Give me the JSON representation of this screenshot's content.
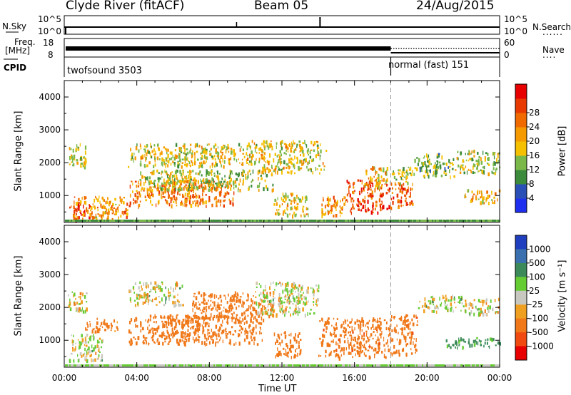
{
  "header": {
    "station": "Clyde River (fitACF)",
    "beam": "Beam 05",
    "date": "24/Aug/2015"
  },
  "sky_panel": {
    "left_label": "N.Sky",
    "right_label": "N.Search",
    "left_top": "10^5",
    "left_bottom": "10^0",
    "right_top": "10^5",
    "right_bottom": "10^0",
    "right_legend": "......"
  },
  "freq_panel": {
    "left_label_1": "Freq.",
    "left_label_2": "[MHz]",
    "right_label": "Nave",
    "left_top": "18",
    "left_bottom": "8",
    "right_top": "60",
    "right_bottom": "0",
    "right_legend": "...."
  },
  "cpid_panel": {
    "label": "CPID",
    "mode_1": "twofsound 3503",
    "mode_2": "normal (fast) 151"
  },
  "power_panel": {
    "ylabel": "Slant Range [km]",
    "colorbar_label": "Power [dB]"
  },
  "velocity_panel": {
    "ylabel": "Slant Range [km]",
    "colorbar_label": "Velocity [m s⁻¹]"
  },
  "xaxis_label": "Time UT",
  "chart_data": {
    "type": "heatmap",
    "x_ticks": [
      "00:00",
      "04:00",
      "08:00",
      "12:00",
      "16:00",
      "20:00",
      "00:00"
    ],
    "x_range_hours": [
      0,
      24
    ],
    "y_ticks": [
      "1000",
      "2000",
      "3000",
      "4000"
    ],
    "y_range_km": [
      180,
      4500
    ],
    "mode_change_hour": 18.0,
    "power": {
      "colorbar_ticks": [
        "4",
        "8",
        "12",
        "16",
        "20",
        "24",
        "28"
      ],
      "colorbar_colors": [
        "#1f2ff0",
        "#2a50b8",
        "#3c8a3c",
        "#7ab84a",
        "#f5c000",
        "#f59a00",
        "#f06a00",
        "#e83a00",
        "#e80000"
      ],
      "range": [
        0,
        32
      ]
    },
    "velocity": {
      "colorbar_ticks": [
        "1000",
        "500",
        "100",
        "25",
        "-25",
        "-100",
        "-500",
        "-1000"
      ],
      "colorbar_colors": [
        "#1f3fbf",
        "#3a6fb0",
        "#3c8a5a",
        "#66cc33",
        "#c8c8c0",
        "#f0a020",
        "#f07818",
        "#f04a10",
        "#e80000"
      ]
    },
    "regions_power": [
      {
        "t0": 0.2,
        "t1": 1.5,
        "r0": 300,
        "r1": 800,
        "value": 28
      },
      {
        "t0": 0.5,
        "t1": 3.5,
        "r0": 300,
        "r1": 1000,
        "value": 20
      },
      {
        "t0": 3.5,
        "t1": 9.5,
        "r0": 700,
        "r1": 1500,
        "value": 22
      },
      {
        "t0": 4.0,
        "t1": 11.5,
        "r0": 1200,
        "r1": 1800,
        "value": 14
      },
      {
        "t0": 0.2,
        "t1": 1.2,
        "r0": 1900,
        "r1": 2600,
        "value": 14
      },
      {
        "t0": 3.5,
        "t1": 10.5,
        "r0": 1900,
        "r1": 2600,
        "value": 16
      },
      {
        "t0": 10.0,
        "t1": 14.5,
        "r0": 1700,
        "r1": 2700,
        "value": 16
      },
      {
        "t0": 11.5,
        "t1": 13.5,
        "r0": 400,
        "r1": 1100,
        "value": 16
      },
      {
        "t0": 14.0,
        "t1": 15.5,
        "r0": 400,
        "r1": 1000,
        "value": 20
      },
      {
        "t0": 15.5,
        "t1": 18.0,
        "r0": 500,
        "r1": 1500,
        "value": 26
      },
      {
        "t0": 16.5,
        "t1": 17.8,
        "r0": 1300,
        "r1": 1900,
        "value": 18
      },
      {
        "t0": 18.0,
        "t1": 19.2,
        "r0": 600,
        "r1": 1400,
        "value": 24
      },
      {
        "t0": 18.0,
        "t1": 19.2,
        "r0": 1400,
        "r1": 1900,
        "value": 14
      },
      {
        "t0": 19.2,
        "t1": 21.5,
        "r0": 1600,
        "r1": 2300,
        "value": 12
      },
      {
        "t0": 21.5,
        "t1": 24.0,
        "r0": 1700,
        "r1": 2400,
        "value": 14
      },
      {
        "t0": 22.0,
        "t1": 24.0,
        "r0": 800,
        "r1": 1200,
        "value": 18
      }
    ],
    "regions_velocity": [
      {
        "t0": 0.2,
        "t1": 2.2,
        "r0": 400,
        "r1": 1200,
        "value": 0
      },
      {
        "t0": 0.2,
        "t1": 1.2,
        "r0": 1900,
        "r1": 2500,
        "value": 0
      },
      {
        "t0": 1.0,
        "t1": 3.0,
        "r0": 1300,
        "r1": 1700,
        "value": -200
      },
      {
        "t0": 3.5,
        "t1": 6.5,
        "r0": 2100,
        "r1": 2800,
        "value": 0
      },
      {
        "t0": 3.5,
        "t1": 11.0,
        "r0": 900,
        "r1": 1800,
        "value": -300
      },
      {
        "t0": 7.0,
        "t1": 11.5,
        "r0": 1700,
        "r1": 2500,
        "value": -250
      },
      {
        "t0": 10.5,
        "t1": 14.0,
        "r0": 1800,
        "r1": 2800,
        "value": 0
      },
      {
        "t0": 11.5,
        "t1": 13.0,
        "r0": 500,
        "r1": 1300,
        "value": -300
      },
      {
        "t0": 14.0,
        "t1": 18.0,
        "r0": 500,
        "r1": 1700,
        "value": -400
      },
      {
        "t0": 18.0,
        "t1": 19.5,
        "r0": 600,
        "r1": 1800,
        "value": -400
      },
      {
        "t0": 19.5,
        "t1": 22.0,
        "r0": 1900,
        "r1": 2400,
        "value": 0
      },
      {
        "t0": 22.0,
        "t1": 24.0,
        "r0": 1800,
        "r1": 2300,
        "value": 0
      },
      {
        "t0": 21.0,
        "t1": 24.0,
        "r0": 800,
        "r1": 1100,
        "value": 150
      }
    ]
  }
}
